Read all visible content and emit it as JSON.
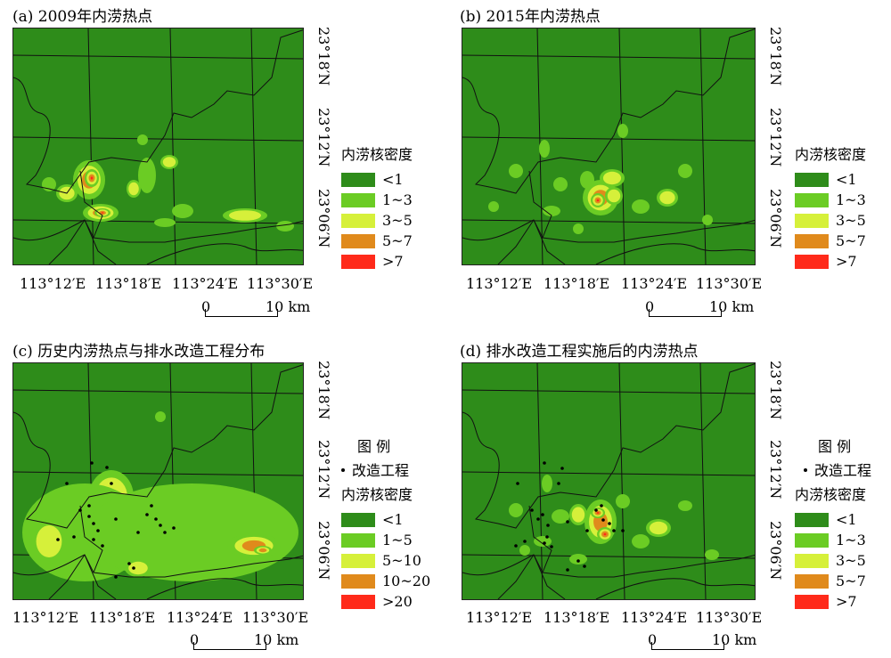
{
  "panels": [
    {
      "title": "(a) 2009年内涝热点",
      "legend_title": "内涝核密度",
      "classes": [
        "<1",
        "1~3",
        "3~5",
        "5~7",
        ">7"
      ]
    },
    {
      "title": "(b) 2015年内涝热点",
      "legend_title": "内涝核密度",
      "classes": [
        "<1",
        "1~3",
        "3~5",
        "5~7",
        ">7"
      ]
    },
    {
      "title": "(c) 历史内涝热点与排水改造工程分布",
      "legend_header": "图 例",
      "point_label": "改造工程",
      "legend_title": "内涝核密度",
      "classes": [
        "<1",
        "1~5",
        "5~10",
        "10~20",
        ">20"
      ]
    },
    {
      "title": "(d) 排水改造工程实施后的内涝热点",
      "legend_header": "图 例",
      "point_label": "改造工程",
      "legend_title": "内涝核密度",
      "classes": [
        "<1",
        "1~3",
        "3~5",
        "5~7",
        ">7"
      ]
    }
  ],
  "lon_labels": [
    "113°12′E",
    "113°18′E",
    "113°24′E",
    "113°30′E"
  ],
  "lat_labels": [
    "23°18′N",
    "23°12′N",
    "23°06′N"
  ],
  "scale": {
    "zero": "0",
    "end": "10 km"
  },
  "colors": {
    "c1": "#2e8c1a",
    "c2": "#6bcc24",
    "c3": "#d6f03a",
    "c4": "#e08a1c",
    "c5": "#ff2a1a"
  }
}
